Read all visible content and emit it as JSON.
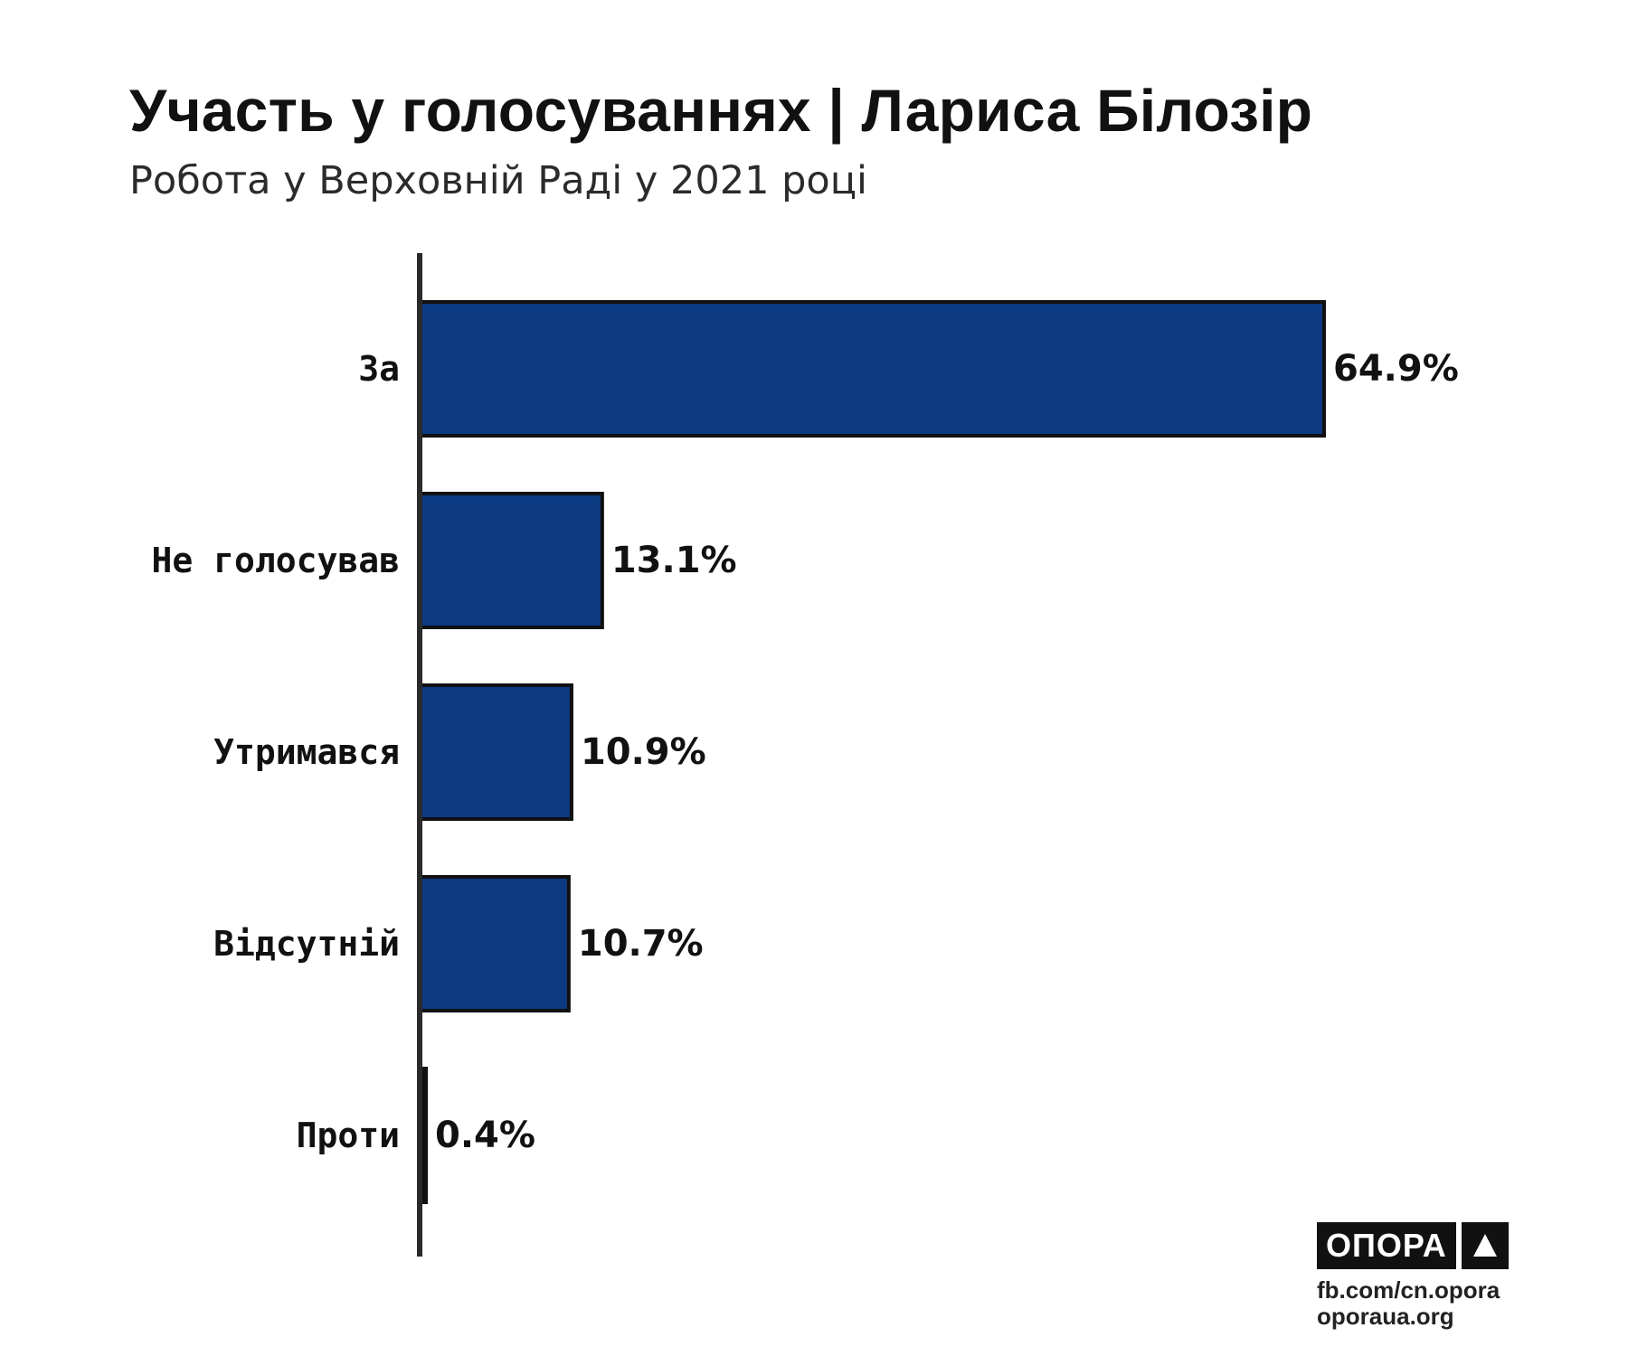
{
  "header": {
    "title": "Участь у голосуваннях | Лариса Білозір",
    "subtitle": "Робота у Верховній Раді у 2021 році"
  },
  "chart_data": {
    "type": "bar",
    "orientation": "horizontal",
    "title": "Участь у голосуваннях | Лариса Білозір",
    "subtitle": "Робота у Верховній Раді у 2021 році",
    "categories": [
      "За",
      "Не голосував",
      "Утримався",
      "Відсутній",
      "Проти"
    ],
    "values": [
      64.9,
      13.1,
      10.9,
      10.7,
      0.4
    ],
    "value_labels": [
      "64.9%",
      "13.1%",
      "10.9%",
      "10.7%",
      "0.4%"
    ],
    "unit": "%",
    "xlim": [
      0,
      70
    ],
    "grid": false,
    "legend": "none",
    "bar_color": "#0b3a82",
    "bar_outline_color": "#111111"
  },
  "branding": {
    "logo_text": "ОПОРА",
    "logo_mark_icon": "triangle-icon",
    "links": [
      "fb.com/cn.opora",
      "oporaua.org"
    ]
  },
  "colors": {
    "bar": "#0b3a82",
    "axis": "#2a2a2a",
    "text": "#111111"
  }
}
